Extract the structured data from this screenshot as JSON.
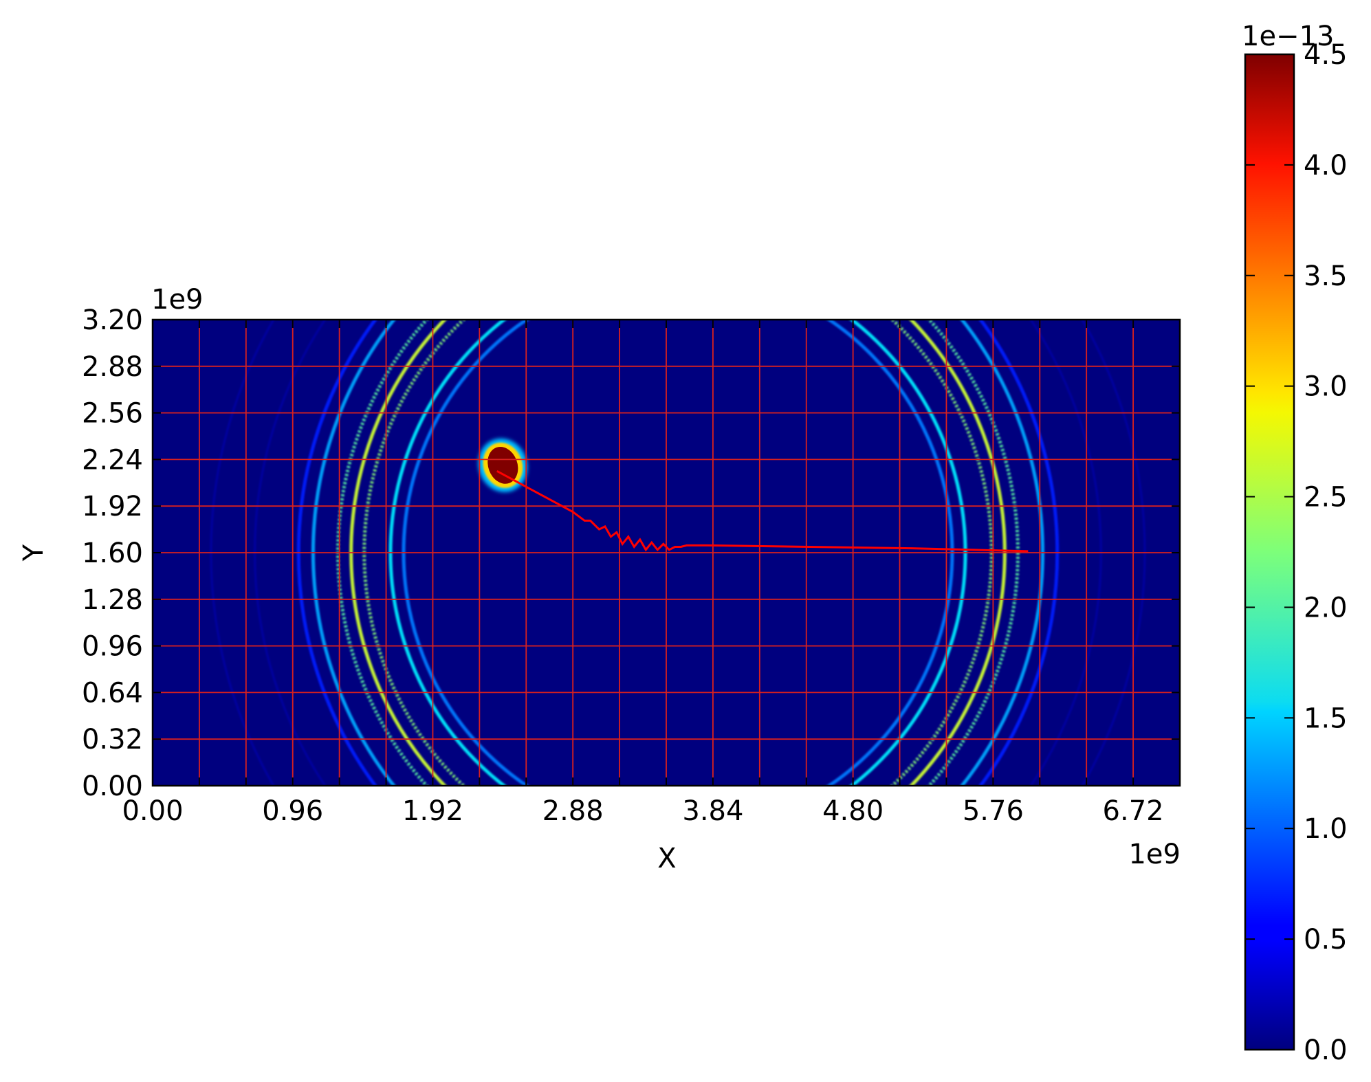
{
  "chart_data": {
    "type": "heatmap",
    "title": "",
    "xlabel": "X",
    "ylabel": "Y",
    "x_offset_text": "1e9",
    "y_offset_text": "1e9",
    "xlim": [
      0,
      7.04
    ],
    "ylim": [
      0,
      3.2
    ],
    "x_ticks": [
      0.0,
      0.96,
      1.92,
      2.88,
      3.84,
      4.8,
      5.76,
      6.72
    ],
    "x_tick_labels": [
      "0.00",
      "0.96",
      "1.92",
      "2.88",
      "3.84",
      "4.80",
      "5.76",
      "6.72"
    ],
    "y_ticks": [
      0.0,
      0.32,
      0.64,
      0.96,
      1.28,
      1.6,
      1.92,
      2.24,
      2.56,
      2.88,
      3.2
    ],
    "y_tick_labels": [
      "0.00",
      "0.32",
      "0.64",
      "0.96",
      "1.28",
      "1.60",
      "1.92",
      "2.24",
      "2.56",
      "2.88",
      "3.20"
    ],
    "grid": true,
    "grid_spacing": 0.32,
    "grid_color": "#d9201e",
    "background_color": "#00007f",
    "colormap": "jet",
    "colorbar": {
      "range": [
        0,
        4.5
      ],
      "offset_text": "1e−13",
      "ticks": [
        0.0,
        0.5,
        1.0,
        1.5,
        2.0,
        2.5,
        3.0,
        3.5,
        4.0,
        4.5
      ],
      "tick_labels": [
        "0.0",
        "0.5",
        "1.0",
        "1.5",
        "2.0",
        "2.5",
        "3.0",
        "3.5",
        "4.0",
        "4.5"
      ]
    },
    "source_blob": {
      "x": 2.4,
      "y": 2.2,
      "rx": 0.1,
      "ry": 0.13,
      "value": 4.5
    },
    "wave_rings": [
      {
        "center_x": 3.6,
        "center_y": 1.6,
        "radius": 2.6,
        "value": 0.7
      },
      {
        "center_x": 3.6,
        "center_y": 1.6,
        "radius": 2.5,
        "value": 1.3
      },
      {
        "center_x": 3.6,
        "center_y": 1.6,
        "radius": 2.33,
        "value": 2.1
      },
      {
        "center_x": 3.6,
        "center_y": 1.6,
        "radius": 2.24,
        "value": 2.6
      },
      {
        "center_x": 3.6,
        "center_y": 1.6,
        "radius": 2.15,
        "value": 2.3
      },
      {
        "center_x": 3.6,
        "center_y": 1.6,
        "radius": 1.97,
        "value": 1.6
      },
      {
        "center_x": 3.6,
        "center_y": 1.6,
        "radius": 1.88,
        "value": 1.1
      }
    ],
    "trajectory": {
      "color": "#ff0000",
      "x": [
        2.36,
        2.88,
        2.96,
        3.0,
        3.06,
        3.1,
        3.14,
        3.18,
        3.22,
        3.26,
        3.3,
        3.34,
        3.38,
        3.42,
        3.46,
        3.5,
        3.54,
        3.58,
        3.62,
        3.66,
        3.8,
        4.5,
        5.2,
        6.0
      ],
      "y": [
        2.16,
        1.88,
        1.82,
        1.82,
        1.76,
        1.78,
        1.71,
        1.74,
        1.66,
        1.71,
        1.64,
        1.69,
        1.62,
        1.67,
        1.62,
        1.66,
        1.62,
        1.64,
        1.64,
        1.65,
        1.65,
        1.64,
        1.63,
        1.61
      ]
    }
  }
}
